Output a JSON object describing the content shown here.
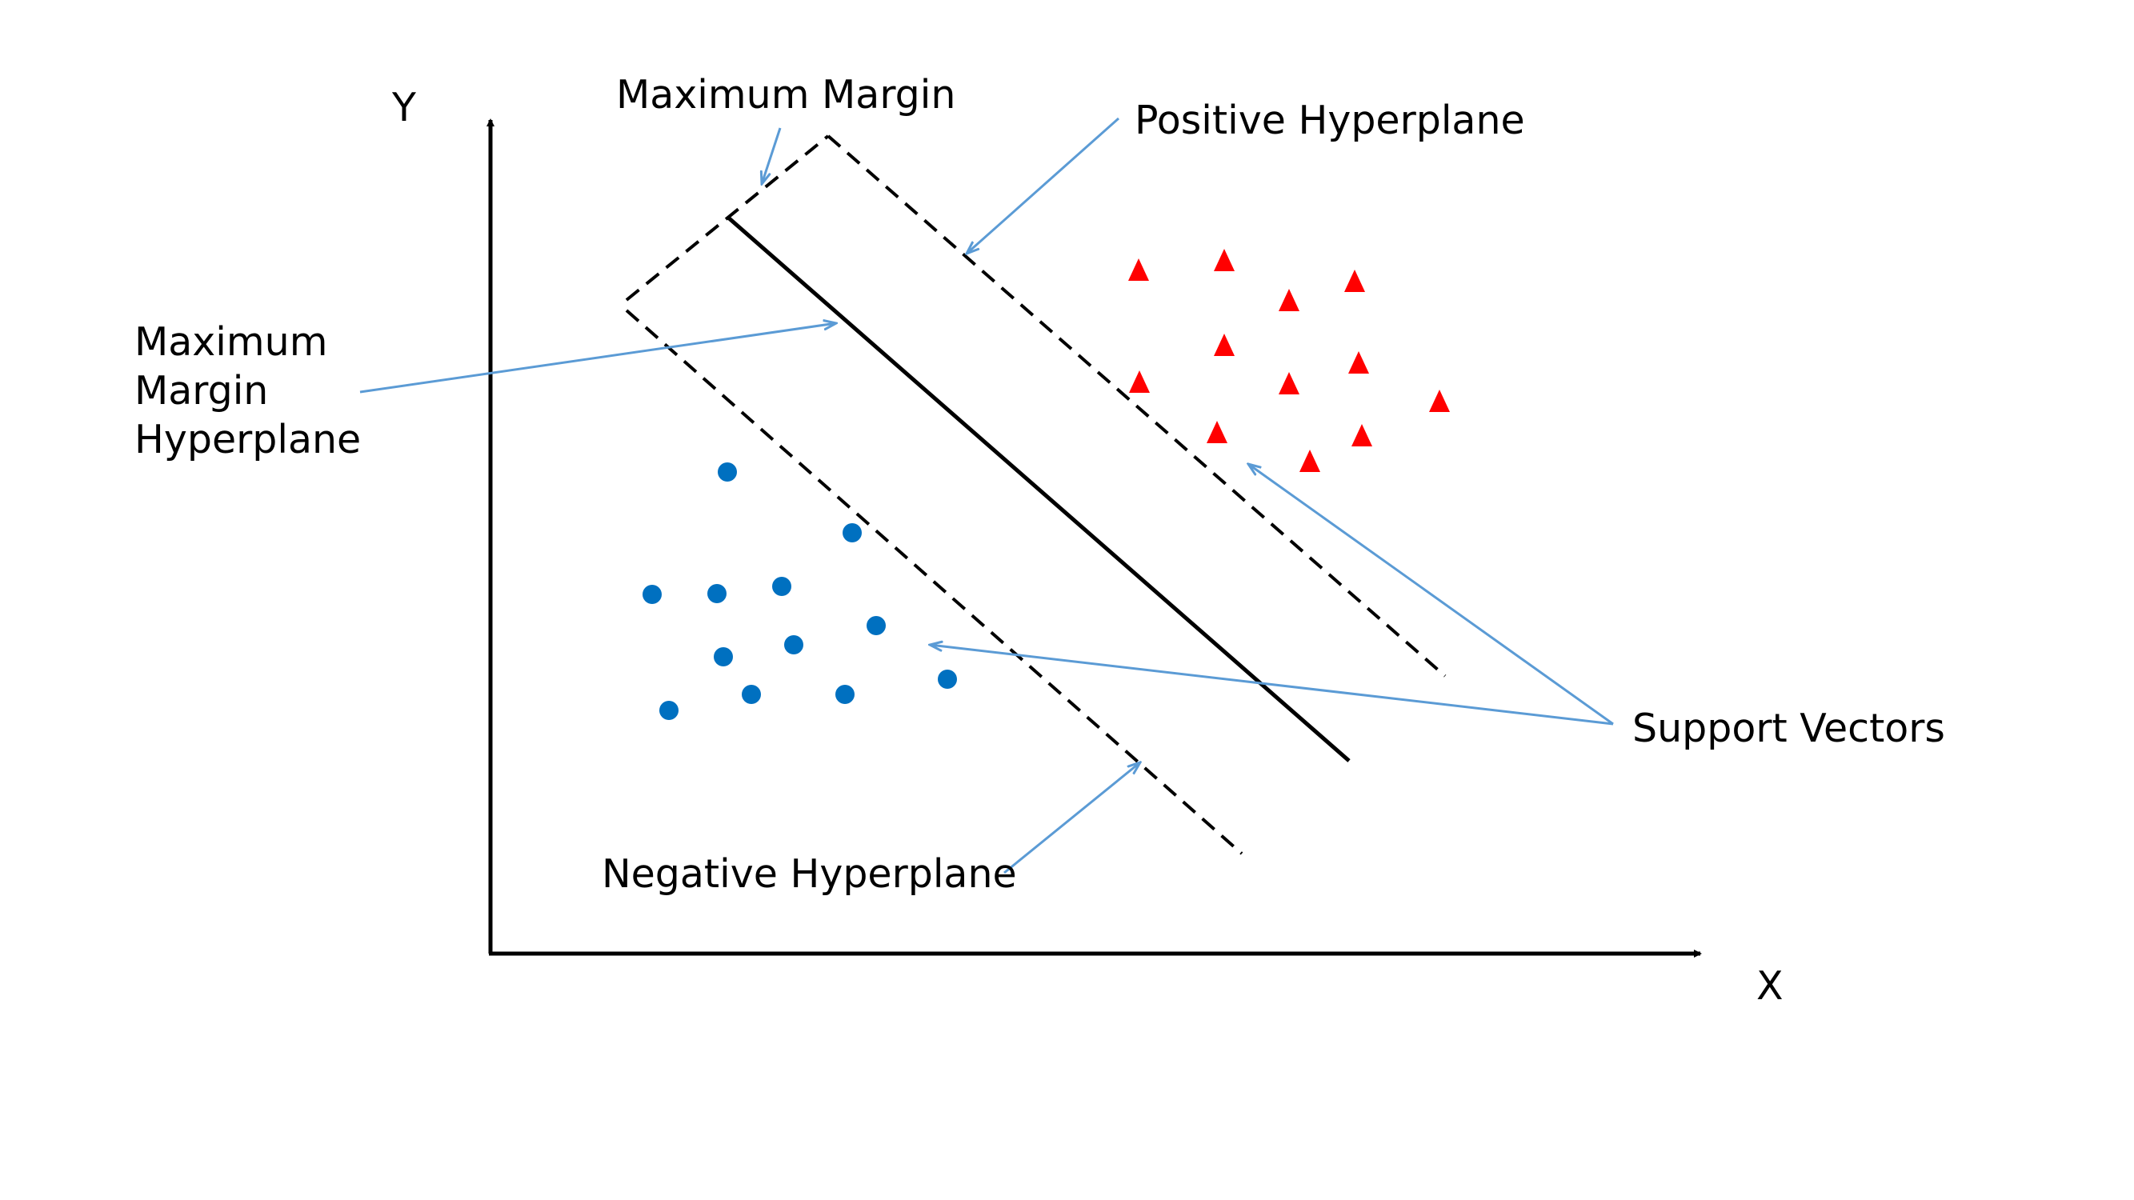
{
  "labels": {
    "y_axis": "Y",
    "x_axis": "X",
    "maximum_margin": "Maximum Margin",
    "positive_hyperplane": "Positive Hyperplane",
    "maximum_margin_hyperplane": [
      "Maximum",
      "Margin",
      "Hyperplane"
    ],
    "support_vectors": "Support Vectors",
    "negative_hyperplane": "Negative Hyperplane"
  },
  "classes": {
    "positive": {
      "marker": "triangle-icon",
      "color": "#ff0000"
    },
    "negative": {
      "marker": "circle-icon",
      "color": "#0070c0"
    }
  },
  "colors": {
    "axis": "#000000",
    "annotation_arrow": "#5b9bd5"
  }
}
